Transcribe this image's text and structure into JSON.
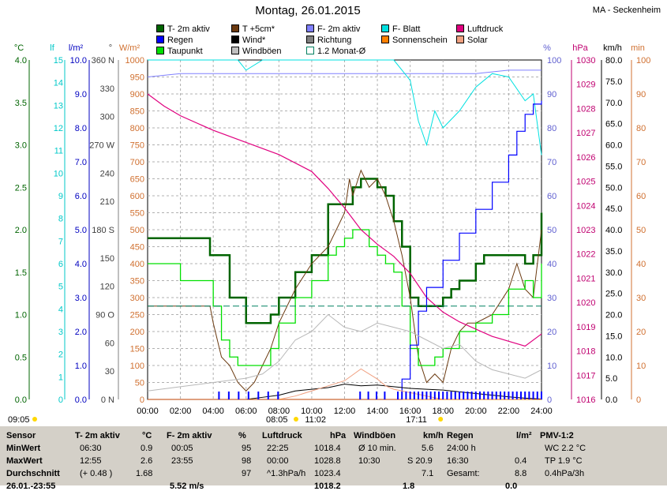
{
  "title": "Montag, 26.01.2015",
  "station": "MA - Seckenheim",
  "legend": [
    {
      "label": "T- 2m aktiv",
      "color": "#006400"
    },
    {
      "label": "T +5cm*",
      "color": "#6b3a10"
    },
    {
      "label": "F- 2m aktiv",
      "color": "#8080ff"
    },
    {
      "label": "F- Blatt",
      "color": "#00e0e0"
    },
    {
      "label": "Luftdruck",
      "color": "#e0007f"
    },
    {
      "label": "Regen",
      "color": "#0000ff"
    },
    {
      "label": "Wind*",
      "color": "#000000"
    },
    {
      "label": "Richtung",
      "color": "#808080"
    },
    {
      "label": "Sonnenschein",
      "color": "#ff8000"
    },
    {
      "label": "Solar",
      "color": "#f0a080"
    },
    {
      "label": "Taupunkt",
      "color": "#00e000"
    },
    {
      "label": "Windböen",
      "color": "#c0c0c0"
    },
    {
      "label": "1.2 Monat-Ø",
      "color": "#008060"
    }
  ],
  "axis_units": {
    "celsius": "°C",
    "lf": "lf",
    "rain": "l/m²",
    "deg": "°",
    "solar": "W/m²",
    "percent": "%",
    "hpa": "hPa",
    "kmh": "km/h",
    "min": "min"
  },
  "axes": {
    "celsius": [
      "4.0",
      "3.5",
      "3.0",
      "2.5",
      "2.0",
      "1.5",
      "1.0",
      "0.5",
      "0.0"
    ],
    "lf": [
      "15",
      "14",
      "13",
      "12",
      "11",
      "10",
      "9",
      "8",
      "7",
      "6",
      "5",
      "4",
      "3",
      "2",
      "1",
      "0"
    ],
    "rain": [
      "10.0",
      "9.0",
      "8.0",
      "7.0",
      "6.0",
      "5.0",
      "4.0",
      "3.0",
      "2.0",
      "1.0",
      "0.0"
    ],
    "deg": [
      "360 N",
      "330",
      "300",
      "270 W",
      "240",
      "210",
      "180 S",
      "150",
      "120",
      "90 O",
      "60",
      "30",
      "0 N"
    ],
    "solar": [
      "1000",
      "950",
      "900",
      "850",
      "800",
      "750",
      "700",
      "650",
      "600",
      "550",
      "500",
      "450",
      "400",
      "350",
      "300",
      "250",
      "200",
      "150",
      "100",
      "50",
      "0"
    ],
    "percent": [
      "100",
      "90",
      "80",
      "70",
      "60",
      "50",
      "40",
      "30",
      "20",
      "10",
      "0"
    ],
    "hpa": [
      "1030",
      "1029",
      "1028",
      "1027",
      "1026",
      "1025",
      "1024",
      "1023",
      "1022",
      "1021",
      "1020",
      "1019",
      "1018",
      "1017",
      "1016"
    ],
    "kmh": [
      "80.0",
      "75.0",
      "70.0",
      "65.0",
      "60.0",
      "55.0",
      "50.0",
      "45.0",
      "40.0",
      "35.0",
      "30.0",
      "25.0",
      "20.0",
      "15.0",
      "10.0",
      "5.0",
      "0.0"
    ],
    "min": [
      "100",
      "90",
      "80",
      "70",
      "60",
      "50",
      "40",
      "30",
      "20",
      "10",
      "0"
    ]
  },
  "x_ticks": [
    "00:00",
    "02:00",
    "04:00",
    "06:00",
    "08:00",
    "10:00",
    "12:00",
    "14:00",
    "16:00",
    "18:00",
    "20:00",
    "22:00",
    "24:00"
  ],
  "sun": {
    "rise_left": "09:05",
    "rise": "08:05",
    "noon": "11:02",
    "set": "17:11"
  },
  "chart_data": {
    "type": "line",
    "x_unit": "hour",
    "xlim": [
      0,
      24
    ],
    "series": [
      {
        "name": "T- 2m aktiv",
        "unit": "°C",
        "x": [
          0,
          1,
          2,
          3,
          3.8,
          4,
          5,
          6,
          7,
          7.5,
          8,
          9,
          10,
          11,
          11.5,
          12,
          12.5,
          13,
          13.5,
          14,
          14.5,
          15,
          15.5,
          16,
          16.5,
          17,
          17.5,
          18,
          18.5,
          19,
          20,
          20.5,
          21,
          22,
          23,
          23.5,
          24
        ],
        "values": [
          1.9,
          1.9,
          1.9,
          1.9,
          1.7,
          1.7,
          1.2,
          0.9,
          0.9,
          1.0,
          1.2,
          1.5,
          1.7,
          2.3,
          2.3,
          2.3,
          2.5,
          2.6,
          2.6,
          2.5,
          2.4,
          2.1,
          1.8,
          1.2,
          1.1,
          1.1,
          1.1,
          1.2,
          1.3,
          1.4,
          1.6,
          1.7,
          1.7,
          1.7,
          1.6,
          1.7,
          2.2
        ]
      },
      {
        "name": "T +5cm*",
        "unit": "°C",
        "x": [
          0,
          3.8,
          4,
          4.5,
          5,
          5.5,
          6,
          6.5,
          7,
          7.5,
          8,
          9,
          10,
          11,
          12,
          12.3,
          12.5,
          13,
          13.5,
          14,
          14.5,
          15,
          15.5,
          16,
          16.5,
          17,
          17.5,
          18,
          18.5,
          19,
          19.5,
          20,
          21,
          22,
          22.5,
          23,
          23.5,
          24
        ],
        "values": [
          1.1,
          1.1,
          0.9,
          0.5,
          0.4,
          0.2,
          0.1,
          0.2,
          0.4,
          0.6,
          0.9,
          1.3,
          1.6,
          1.8,
          2.2,
          2.6,
          2.4,
          2.7,
          2.5,
          2.6,
          2.4,
          2.1,
          1.7,
          1.2,
          0.5,
          0.2,
          0.3,
          0.2,
          0.6,
          0.8,
          0.9,
          0.9,
          1.0,
          1.3,
          1.6,
          1.3,
          1.2,
          2.0
        ]
      },
      {
        "name": "Taupunkt",
        "unit": "°C",
        "x": [
          0,
          1,
          2,
          3,
          3.8,
          4,
          4.5,
          5,
          5.5,
          6,
          6.5,
          7,
          7.5,
          8,
          9,
          10,
          11,
          11.5,
          12,
          12.5,
          13,
          13.5,
          14,
          14.5,
          15,
          15.5,
          16,
          16.5,
          17,
          17.5,
          18,
          19,
          20,
          21,
          22,
          23,
          23.5,
          24
        ],
        "values": [
          1.6,
          1.6,
          1.4,
          1.4,
          1.4,
          1.1,
          0.7,
          0.5,
          0.4,
          0.4,
          0.4,
          0.4,
          0.6,
          0.9,
          1.2,
          1.4,
          1.7,
          1.8,
          1.9,
          2.0,
          2.0,
          1.8,
          1.7,
          1.6,
          1.5,
          1.1,
          0.6,
          0.4,
          0.4,
          0.5,
          0.6,
          0.8,
          0.9,
          1.0,
          1.3,
          1.4,
          1.2,
          1.6
        ]
      },
      {
        "name": "F- 2m aktiv",
        "unit": "%",
        "x": [
          0,
          2,
          4,
          6,
          8,
          10,
          12,
          14,
          16,
          18,
          20,
          22,
          24
        ],
        "values": [
          95,
          96,
          96,
          96,
          96,
          96,
          96,
          96,
          96,
          96,
          96,
          97,
          97
        ]
      },
      {
        "name": "F- Blatt",
        "unit": "%",
        "x": [
          0,
          5.5,
          6,
          7,
          8,
          9,
          10,
          11,
          12,
          13,
          14,
          15,
          16,
          16.5,
          17,
          17.5,
          18,
          19,
          20,
          21,
          22,
          23,
          23.5,
          24
        ],
        "values": [
          100,
          100,
          97,
          100,
          100,
          100,
          100,
          100,
          100,
          100,
          100,
          100,
          94,
          82,
          75,
          85,
          80,
          85,
          92,
          96,
          95,
          88,
          90,
          72
        ]
      },
      {
        "name": "Luftdruck",
        "unit": "hPa",
        "x": [
          0,
          1,
          2,
          4,
          6,
          8,
          10,
          11,
          12,
          13,
          14,
          15,
          16,
          17,
          18,
          19,
          20,
          21,
          22,
          23,
          24
        ],
        "values": [
          1028.6,
          1028.1,
          1027.7,
          1027.1,
          1026.6,
          1026.1,
          1025.4,
          1024.7,
          1023.9,
          1023.0,
          1022.4,
          1021.9,
          1021.2,
          1020.2,
          1019.6,
          1019.2,
          1018.9,
          1018.6,
          1018.4,
          1018.2,
          1018.7
        ]
      },
      {
        "name": "Regen",
        "unit": "l/m²",
        "x": [
          0,
          15,
          15.5,
          16,
          16.5,
          17,
          18,
          19,
          20,
          21,
          22,
          22.5,
          23,
          23.5,
          24
        ],
        "values": [
          0,
          0,
          0.6,
          1.6,
          2.6,
          3.3,
          4.1,
          4.9,
          5.6,
          6.4,
          7.2,
          7.9,
          8.4,
          8.7,
          8.8
        ]
      },
      {
        "name": "Wind*",
        "unit": "km/h",
        "x": [
          0,
          6,
          7,
          8,
          9,
          10,
          11,
          12,
          13,
          14,
          15,
          16,
          17,
          18,
          19,
          20,
          21,
          22,
          23,
          24
        ],
        "values": [
          0,
          0,
          0.5,
          1.0,
          2.0,
          2.4,
          2.8,
          3.6,
          3.2,
          3.4,
          3.0,
          2.6,
          2.4,
          2.2,
          1.8,
          1.4,
          1.0,
          0.6,
          0.3,
          0.1
        ]
      },
      {
        "name": "Windböen",
        "unit": "km/h",
        "x": [
          0,
          2,
          4,
          6,
          7,
          8,
          9,
          10,
          11,
          12,
          13,
          14,
          15,
          16,
          17,
          18,
          19,
          20,
          21,
          22,
          23,
          24
        ],
        "values": [
          2,
          3,
          4,
          5,
          6,
          9,
          14,
          16,
          20,
          17,
          16,
          18,
          17,
          16,
          14,
          12,
          13,
          9,
          7,
          6,
          5,
          7
        ]
      },
      {
        "name": "Solar",
        "unit": "W/m²",
        "x": [
          0,
          8,
          9,
          10,
          11,
          12,
          13,
          14,
          14.5,
          15,
          16,
          17,
          18,
          24
        ],
        "values": [
          0,
          0,
          10,
          25,
          40,
          55,
          90,
          60,
          40,
          30,
          20,
          10,
          0,
          0
        ]
      },
      {
        "name": "Sonnenschein",
        "unit": "min",
        "x": [
          0,
          24
        ],
        "values": [
          0,
          0
        ]
      },
      {
        "name": "1.2 Monat-Ø",
        "unit": "°C",
        "x": [
          0,
          24
        ],
        "values": [
          1.1,
          1.1
        ]
      }
    ]
  },
  "table": {
    "rows": [
      "Sensor",
      "MinWert",
      "MaxWert",
      "Durchschnitt"
    ],
    "cols": [
      {
        "header": "T- 2m aktiv",
        "unit": "°C",
        "a": [
          "06:30",
          "12:55",
          "(+ 0.48 )"
        ],
        "b": [
          "0.9",
          "2.6",
          "1.68"
        ]
      },
      {
        "header": "F- 2m aktiv",
        "unit": "%",
        "a": [
          "00:05",
          "23:55",
          ""
        ],
        "b": [
          "95",
          "98",
          "97"
        ]
      },
      {
        "header": "Luftdruck",
        "unit": "hPa",
        "a": [
          "22:25",
          "00:00",
          "^1.3hPa/h"
        ],
        "b": [
          "1018.4",
          "1028.8",
          "1023.4"
        ]
      },
      {
        "header": "Windböen",
        "unit": "km/h",
        "a": [
          "Ø 10 min.",
          "10:30",
          ""
        ],
        "b": [
          "5.6",
          "S 20.9",
          "7.1"
        ]
      },
      {
        "header": "Regen",
        "unit": "l/m²",
        "a": [
          "24:00 h",
          "16:30",
          "Gesamt:"
        ],
        "b": [
          "",
          "0.4",
          "8.8"
        ]
      },
      {
        "header": "PMV-1:2",
        "unit": "",
        "a": [
          "WC 2.2 °C",
          "TP 1.9 °C",
          "0.4hPa/3h"
        ],
        "b": [
          "",
          "",
          ""
        ]
      }
    ],
    "partial_row": [
      "26.01.-23:55",
      "5.52 m/s",
      "1018.2",
      "1.8",
      "0.0"
    ]
  }
}
